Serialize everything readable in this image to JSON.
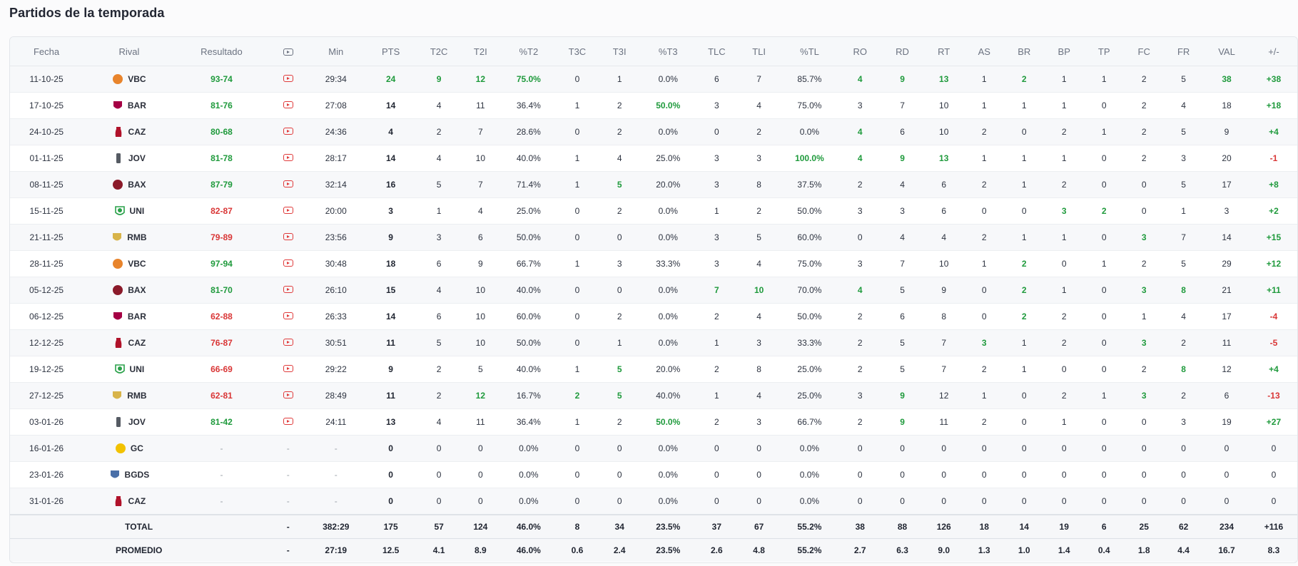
{
  "title": "Partidos de la temporada",
  "colors": {
    "good": "#1f9a3c",
    "bad": "#d93636",
    "video": "#e03b3b"
  },
  "headers": [
    "Fecha",
    "Rival",
    "Resultado",
    "video-icon",
    "Min",
    "PTS",
    "T2C",
    "T2I",
    "%T2",
    "T3C",
    "T3I",
    "%T3",
    "TLC",
    "TLI",
    "%TL",
    "RO",
    "RD",
    "RT",
    "AS",
    "BR",
    "BP",
    "TP",
    "FC",
    "FR",
    "VAL",
    "+/-"
  ],
  "teams": {
    "VBC": {
      "icon": "valencia-basket-logo",
      "color": "#e8842c"
    },
    "BAR": {
      "icon": "barcelona-logo",
      "color": "#a50044"
    },
    "CAZ": {
      "icon": "zaragoza-logo",
      "color": "#b0122a"
    },
    "JOV": {
      "icon": "joventut-logo",
      "color": "#555b63"
    },
    "BAX": {
      "icon": "baskonia-logo",
      "color": "#8b1a2a"
    },
    "UNI": {
      "icon": "unicaja-logo",
      "color": "#2aa14a"
    },
    "RMB": {
      "icon": "real-madrid-logo",
      "color": "#d8b44a"
    },
    "GC": {
      "icon": "gran-canaria-logo",
      "color": "#f2c200"
    },
    "BGDS": {
      "icon": "bilbao-basket-logo",
      "color": "#4a6fa8"
    }
  },
  "rows": [
    {
      "fecha": "11-10-25",
      "rival": "VBC",
      "resultado": "93-74",
      "res": "win",
      "video": true,
      "min": "29:34",
      "pts": "24",
      "t2c": "9",
      "t2i": "12",
      "pt2": "75.0%",
      "t3c": "0",
      "t3i": "1",
      "pt3": "0.0%",
      "tlc": "6",
      "tli": "7",
      "ptl": "85.7%",
      "ro": "4",
      "rd": "9",
      "rt": "13",
      "as": "1",
      "br": "2",
      "bp": "1",
      "tp": "1",
      "fc": "2",
      "fr": "5",
      "val": "38",
      "pm": "+38",
      "hl": [
        "pts",
        "t2c",
        "t2i",
        "pt2",
        "ro",
        "rd",
        "rt",
        "br",
        "val",
        "pm"
      ]
    },
    {
      "fecha": "17-10-25",
      "rival": "BAR",
      "resultado": "81-76",
      "res": "win",
      "video": true,
      "min": "27:08",
      "pts": "14",
      "t2c": "4",
      "t2i": "11",
      "pt2": "36.4%",
      "t3c": "1",
      "t3i": "2",
      "pt3": "50.0%",
      "tlc": "3",
      "tli": "4",
      "ptl": "75.0%",
      "ro": "3",
      "rd": "7",
      "rt": "10",
      "as": "1",
      "br": "1",
      "bp": "1",
      "tp": "0",
      "fc": "2",
      "fr": "4",
      "val": "18",
      "pm": "+18",
      "hl": [
        "pt3",
        "pm"
      ]
    },
    {
      "fecha": "24-10-25",
      "rival": "CAZ",
      "resultado": "80-68",
      "res": "win",
      "video": true,
      "min": "24:36",
      "pts": "4",
      "t2c": "2",
      "t2i": "7",
      "pt2": "28.6%",
      "t3c": "0",
      "t3i": "2",
      "pt3": "0.0%",
      "tlc": "0",
      "tli": "2",
      "ptl": "0.0%",
      "ro": "4",
      "rd": "6",
      "rt": "10",
      "as": "2",
      "br": "0",
      "bp": "2",
      "tp": "1",
      "fc": "2",
      "fr": "5",
      "val": "9",
      "pm": "+4",
      "hl": [
        "ro",
        "pm"
      ]
    },
    {
      "fecha": "01-11-25",
      "rival": "JOV",
      "resultado": "81-78",
      "res": "win",
      "video": true,
      "min": "28:17",
      "pts": "14",
      "t2c": "4",
      "t2i": "10",
      "pt2": "40.0%",
      "t3c": "1",
      "t3i": "4",
      "pt3": "25.0%",
      "tlc": "3",
      "tli": "3",
      "ptl": "100.0%",
      "ro": "4",
      "rd": "9",
      "rt": "13",
      "as": "1",
      "br": "1",
      "bp": "1",
      "tp": "0",
      "fc": "2",
      "fr": "3",
      "val": "20",
      "pm": "-1",
      "hl": [
        "ptl",
        "ro",
        "rd",
        "rt"
      ],
      "neg": true
    },
    {
      "fecha": "08-11-25",
      "rival": "BAX",
      "resultado": "87-79",
      "res": "win",
      "video": true,
      "min": "32:14",
      "pts": "16",
      "t2c": "5",
      "t2i": "7",
      "pt2": "71.4%",
      "t3c": "1",
      "t3i": "5",
      "pt3": "20.0%",
      "tlc": "3",
      "tli": "8",
      "ptl": "37.5%",
      "ro": "2",
      "rd": "4",
      "rt": "6",
      "as": "2",
      "br": "1",
      "bp": "2",
      "tp": "0",
      "fc": "0",
      "fr": "5",
      "val": "17",
      "pm": "+8",
      "hl": [
        "t3i",
        "pm"
      ]
    },
    {
      "fecha": "15-11-25",
      "rival": "UNI",
      "resultado": "82-87",
      "res": "loss",
      "video": true,
      "min": "20:00",
      "pts": "3",
      "t2c": "1",
      "t2i": "4",
      "pt2": "25.0%",
      "t3c": "0",
      "t3i": "2",
      "pt3": "0.0%",
      "tlc": "1",
      "tli": "2",
      "ptl": "50.0%",
      "ro": "3",
      "rd": "3",
      "rt": "6",
      "as": "0",
      "br": "0",
      "bp": "3",
      "tp": "2",
      "fc": "0",
      "fr": "1",
      "val": "3",
      "pm": "+2",
      "hl": [
        "bp",
        "tp",
        "pm"
      ]
    },
    {
      "fecha": "21-11-25",
      "rival": "RMB",
      "resultado": "79-89",
      "res": "loss",
      "video": true,
      "min": "23:56",
      "pts": "9",
      "t2c": "3",
      "t2i": "6",
      "pt2": "50.0%",
      "t3c": "0",
      "t3i": "0",
      "pt3": "0.0%",
      "tlc": "3",
      "tli": "5",
      "ptl": "60.0%",
      "ro": "0",
      "rd": "4",
      "rt": "4",
      "as": "2",
      "br": "1",
      "bp": "1",
      "tp": "0",
      "fc": "3",
      "fr": "7",
      "val": "14",
      "pm": "+15",
      "hl": [
        "fc",
        "pm"
      ]
    },
    {
      "fecha": "28-11-25",
      "rival": "VBC",
      "resultado": "97-94",
      "res": "win",
      "video": true,
      "min": "30:48",
      "pts": "18",
      "t2c": "6",
      "t2i": "9",
      "pt2": "66.7%",
      "t3c": "1",
      "t3i": "3",
      "pt3": "33.3%",
      "tlc": "3",
      "tli": "4",
      "ptl": "75.0%",
      "ro": "3",
      "rd": "7",
      "rt": "10",
      "as": "1",
      "br": "2",
      "bp": "0",
      "tp": "1",
      "fc": "2",
      "fr": "5",
      "val": "29",
      "pm": "+12",
      "hl": [
        "br",
        "pm"
      ]
    },
    {
      "fecha": "05-12-25",
      "rival": "BAX",
      "resultado": "81-70",
      "res": "win",
      "video": true,
      "min": "26:10",
      "pts": "15",
      "t2c": "4",
      "t2i": "10",
      "pt2": "40.0%",
      "t3c": "0",
      "t3i": "0",
      "pt3": "0.0%",
      "tlc": "7",
      "tli": "10",
      "ptl": "70.0%",
      "ro": "4",
      "rd": "5",
      "rt": "9",
      "as": "0",
      "br": "2",
      "bp": "1",
      "tp": "0",
      "fc": "3",
      "fr": "8",
      "val": "21",
      "pm": "+11",
      "hl": [
        "tlc",
        "tli",
        "ro",
        "br",
        "fc",
        "fr",
        "pm"
      ]
    },
    {
      "fecha": "06-12-25",
      "rival": "BAR",
      "resultado": "62-88",
      "res": "loss",
      "video": true,
      "min": "26:33",
      "pts": "14",
      "t2c": "6",
      "t2i": "10",
      "pt2": "60.0%",
      "t3c": "0",
      "t3i": "2",
      "pt3": "0.0%",
      "tlc": "2",
      "tli": "4",
      "ptl": "50.0%",
      "ro": "2",
      "rd": "6",
      "rt": "8",
      "as": "0",
      "br": "2",
      "bp": "2",
      "tp": "0",
      "fc": "1",
      "fr": "4",
      "val": "17",
      "pm": "-4",
      "hl": [
        "br"
      ],
      "neg": true
    },
    {
      "fecha": "12-12-25",
      "rival": "CAZ",
      "resultado": "76-87",
      "res": "loss",
      "video": true,
      "min": "30:51",
      "pts": "11",
      "t2c": "5",
      "t2i": "10",
      "pt2": "50.0%",
      "t3c": "0",
      "t3i": "1",
      "pt3": "0.0%",
      "tlc": "1",
      "tli": "3",
      "ptl": "33.3%",
      "ro": "2",
      "rd": "5",
      "rt": "7",
      "as": "3",
      "br": "1",
      "bp": "2",
      "tp": "0",
      "fc": "3",
      "fr": "2",
      "val": "11",
      "pm": "-5",
      "hl": [
        "as",
        "fc"
      ],
      "neg": true
    },
    {
      "fecha": "19-12-25",
      "rival": "UNI",
      "resultado": "66-69",
      "res": "loss",
      "video": true,
      "min": "29:22",
      "pts": "9",
      "t2c": "2",
      "t2i": "5",
      "pt2": "40.0%",
      "t3c": "1",
      "t3i": "5",
      "pt3": "20.0%",
      "tlc": "2",
      "tli": "8",
      "ptl": "25.0%",
      "ro": "2",
      "rd": "5",
      "rt": "7",
      "as": "2",
      "br": "1",
      "bp": "0",
      "tp": "0",
      "fc": "2",
      "fr": "8",
      "val": "12",
      "pm": "+4",
      "hl": [
        "t3i",
        "fr",
        "pm"
      ]
    },
    {
      "fecha": "27-12-25",
      "rival": "RMB",
      "resultado": "62-81",
      "res": "loss",
      "video": true,
      "min": "28:49",
      "pts": "11",
      "t2c": "2",
      "t2i": "12",
      "pt2": "16.7%",
      "t3c": "2",
      "t3i": "5",
      "pt3": "40.0%",
      "tlc": "1",
      "tli": "4",
      "ptl": "25.0%",
      "ro": "3",
      "rd": "9",
      "rt": "12",
      "as": "1",
      "br": "0",
      "bp": "2",
      "tp": "1",
      "fc": "3",
      "fr": "2",
      "val": "6",
      "pm": "-13",
      "hl": [
        "t2i",
        "t3c",
        "t3i",
        "rd",
        "fc"
      ],
      "neg": true
    },
    {
      "fecha": "03-01-26",
      "rival": "JOV",
      "resultado": "81-42",
      "res": "win",
      "video": true,
      "min": "24:11",
      "pts": "13",
      "t2c": "4",
      "t2i": "11",
      "pt2": "36.4%",
      "t3c": "1",
      "t3i": "2",
      "pt3": "50.0%",
      "tlc": "2",
      "tli": "3",
      "ptl": "66.7%",
      "ro": "2",
      "rd": "9",
      "rt": "11",
      "as": "2",
      "br": "0",
      "bp": "1",
      "tp": "0",
      "fc": "0",
      "fr": "3",
      "val": "19",
      "pm": "+27",
      "hl": [
        "pt3",
        "rd",
        "pm"
      ]
    },
    {
      "fecha": "16-01-26",
      "rival": "GC",
      "resultado": "-",
      "res": "none",
      "video": false,
      "min": "-",
      "pts": "0",
      "t2c": "0",
      "t2i": "0",
      "pt2": "0.0%",
      "t3c": "0",
      "t3i": "0",
      "pt3": "0.0%",
      "tlc": "0",
      "tli": "0",
      "ptl": "0.0%",
      "ro": "0",
      "rd": "0",
      "rt": "0",
      "as": "0",
      "br": "0",
      "bp": "0",
      "tp": "0",
      "fc": "0",
      "fr": "0",
      "val": "0",
      "pm": "0",
      "hl": []
    },
    {
      "fecha": "23-01-26",
      "rival": "BGDS",
      "resultado": "-",
      "res": "none",
      "video": false,
      "min": "-",
      "pts": "0",
      "t2c": "0",
      "t2i": "0",
      "pt2": "0.0%",
      "t3c": "0",
      "t3i": "0",
      "pt3": "0.0%",
      "tlc": "0",
      "tli": "0",
      "ptl": "0.0%",
      "ro": "0",
      "rd": "0",
      "rt": "0",
      "as": "0",
      "br": "0",
      "bp": "0",
      "tp": "0",
      "fc": "0",
      "fr": "0",
      "val": "0",
      "pm": "0",
      "hl": []
    },
    {
      "fecha": "31-01-26",
      "rival": "CAZ",
      "resultado": "-",
      "res": "none",
      "video": false,
      "min": "-",
      "pts": "0",
      "t2c": "0",
      "t2i": "0",
      "pt2": "0.0%",
      "t3c": "0",
      "t3i": "0",
      "pt3": "0.0%",
      "tlc": "0",
      "tli": "0",
      "ptl": "0.0%",
      "ro": "0",
      "rd": "0",
      "rt": "0",
      "as": "0",
      "br": "0",
      "bp": "0",
      "tp": "0",
      "fc": "0",
      "fr": "0",
      "val": "0",
      "pm": "0",
      "hl": []
    }
  ],
  "totals": [
    {
      "label": "TOTAL",
      "video": "-",
      "min": "382:29",
      "pts": "175",
      "t2c": "57",
      "t2i": "124",
      "pt2": "46.0%",
      "t3c": "8",
      "t3i": "34",
      "pt3": "23.5%",
      "tlc": "37",
      "tli": "67",
      "ptl": "55.2%",
      "ro": "38",
      "rd": "88",
      "rt": "126",
      "as": "18",
      "br": "14",
      "bp": "19",
      "tp": "6",
      "fc": "25",
      "fr": "62",
      "val": "234",
      "pm": "+116"
    },
    {
      "label": "PROMEDIO",
      "video": "-",
      "min": "27:19",
      "pts": "12.5",
      "t2c": "4.1",
      "t2i": "8.9",
      "pt2": "46.0%",
      "t3c": "0.6",
      "t3i": "2.4",
      "pt3": "23.5%",
      "tlc": "2.6",
      "tli": "4.8",
      "ptl": "55.2%",
      "ro": "2.7",
      "rd": "6.3",
      "rt": "9.0",
      "as": "1.3",
      "br": "1.0",
      "bp": "1.4",
      "tp": "0.4",
      "fc": "1.8",
      "fr": "4.4",
      "val": "16.7",
      "pm": "8.3"
    }
  ]
}
